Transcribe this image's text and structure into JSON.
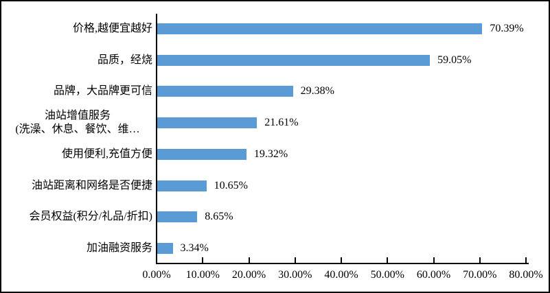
{
  "chart_data": {
    "type": "bar",
    "orientation": "horizontal",
    "title": "",
    "xlabel": "",
    "ylabel": "",
    "categories": [
      "价格,越便宜越好",
      "品质，经烧",
      "品牌，大品牌更可信",
      "油站增值服务\n(洗澡、休息、餐饮、维…",
      "使用便利,充值方便",
      "油站距离和网络是否便捷",
      "会员权益(积分/礼品/折扣)",
      "加油融资服务"
    ],
    "values": [
      70.39,
      59.05,
      29.38,
      21.61,
      19.32,
      10.65,
      8.65,
      3.34
    ],
    "value_labels": [
      "70.39%",
      "59.05%",
      "29.38%",
      "21.61%",
      "19.32%",
      "10.65%",
      "8.65%",
      "3.34%"
    ],
    "x_ticks": [
      "0.00%",
      "10.00%",
      "20.00%",
      "30.00%",
      "40.00%",
      "50.00%",
      "60.00%",
      "70.00%",
      "80.00%"
    ],
    "xlim": [
      0,
      80
    ],
    "grid": false,
    "legend": null,
    "colors": {
      "bar": "#5B9BD5",
      "axis": "#000000",
      "text": "#000000",
      "background": "#FFFFFF",
      "border": "#000000"
    }
  }
}
